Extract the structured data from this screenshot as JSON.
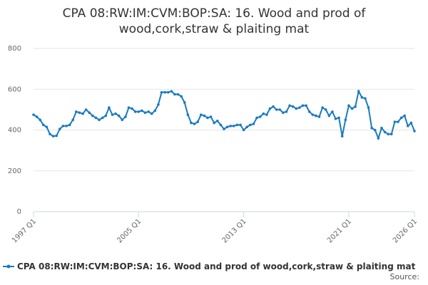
{
  "chart_data": {
    "type": "line",
    "title": [
      "CPA 08:RW:IM:CVM:BOP:SA: 16. Wood and prod of",
      "wood,cork,straw & plaiting mat"
    ],
    "categories": [
      "1997 Q1",
      null,
      null,
      null,
      null,
      null,
      null,
      null,
      null,
      null,
      null,
      null,
      null,
      null,
      null,
      null,
      null,
      null,
      null,
      null,
      null,
      null,
      null,
      null,
      null,
      null,
      null,
      null,
      null,
      null,
      null,
      null,
      "2005 Q1",
      null,
      null,
      null,
      null,
      null,
      null,
      null,
      null,
      null,
      null,
      null,
      null,
      null,
      null,
      null,
      null,
      null,
      null,
      null,
      null,
      null,
      null,
      null,
      null,
      null,
      null,
      null,
      null,
      null,
      null,
      null,
      "2013 Q1",
      null,
      null,
      null,
      null,
      null,
      null,
      null,
      null,
      null,
      null,
      null,
      null,
      null,
      null,
      null,
      null,
      null,
      null,
      null,
      null,
      null,
      null,
      null,
      null,
      null,
      null,
      null,
      null,
      null,
      null,
      null,
      "2021 Q1",
      null,
      null,
      null,
      null,
      null,
      null,
      null,
      null,
      null,
      null,
      null,
      null,
      null,
      null,
      null,
      null,
      null,
      null,
      null,
      "2026 Q1"
    ],
    "series": [
      {
        "name": "CPA 08:RW:IM:CVM:BOP:SA: 16. Wood and prod of wood,cork,straw & plaiting mat",
        "color": "#1a7bbf",
        "values": [
          475,
          465,
          450,
          425,
          415,
          380,
          370,
          372,
          405,
          420,
          420,
          425,
          450,
          490,
          485,
          480,
          500,
          485,
          470,
          460,
          450,
          460,
          470,
          510,
          475,
          480,
          470,
          450,
          465,
          510,
          505,
          490,
          490,
          495,
          485,
          490,
          480,
          495,
          525,
          585,
          585,
          585,
          590,
          575,
          575,
          565,
          535,
          475,
          435,
          430,
          440,
          475,
          470,
          460,
          465,
          435,
          445,
          425,
          405,
          415,
          420,
          420,
          425,
          425,
          400,
          415,
          425,
          430,
          460,
          465,
          480,
          475,
          505,
          515,
          500,
          500,
          485,
          490,
          520,
          515,
          505,
          510,
          520,
          520,
          490,
          475,
          470,
          465,
          510,
          500,
          470,
          490,
          455,
          460,
          370,
          450,
          520,
          505,
          515,
          590,
          560,
          555,
          510,
          410,
          400,
          360,
          410,
          390,
          380,
          380,
          440,
          440,
          460,
          470,
          420,
          435,
          395
        ]
      }
    ],
    "ylim": [
      0,
      800
    ],
    "yticks": [
      0,
      200,
      400,
      600,
      800
    ],
    "grid": true,
    "source": "Source:"
  }
}
